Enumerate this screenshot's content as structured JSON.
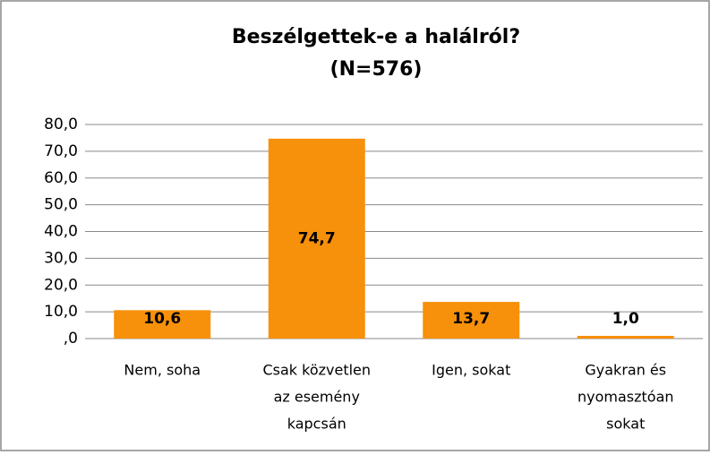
{
  "chart_data": {
    "type": "bar",
    "title": [
      "Beszélgettek-e a halálról?",
      "(N=576)"
    ],
    "categories": [
      [
        "Nem, soha"
      ],
      [
        "Csak közvetlen",
        "az esemény",
        "kapcsán"
      ],
      [
        "Igen, sokat"
      ],
      [
        "Gyakran és",
        "nyomasztóan",
        "sokat"
      ]
    ],
    "values": [
      10.6,
      74.7,
      13.7,
      1.0
    ],
    "value_labels": [
      "10,6",
      "74,7",
      "13,7",
      "1,0"
    ],
    "color": "#f7900a",
    "ylim": [
      0,
      80
    ],
    "yticks": [
      {
        "value": 0,
        "label": ",0"
      },
      {
        "value": 10,
        "label": "10,0"
      },
      {
        "value": 20,
        "label": "20,0"
      },
      {
        "value": 30,
        "label": "30,0"
      },
      {
        "value": 40,
        "label": "40,0"
      },
      {
        "value": 50,
        "label": "50,0"
      },
      {
        "value": 60,
        "label": "60,0"
      },
      {
        "value": 70,
        "label": "70,0"
      },
      {
        "value": 80,
        "label": "80,0"
      }
    ],
    "grid": true
  }
}
